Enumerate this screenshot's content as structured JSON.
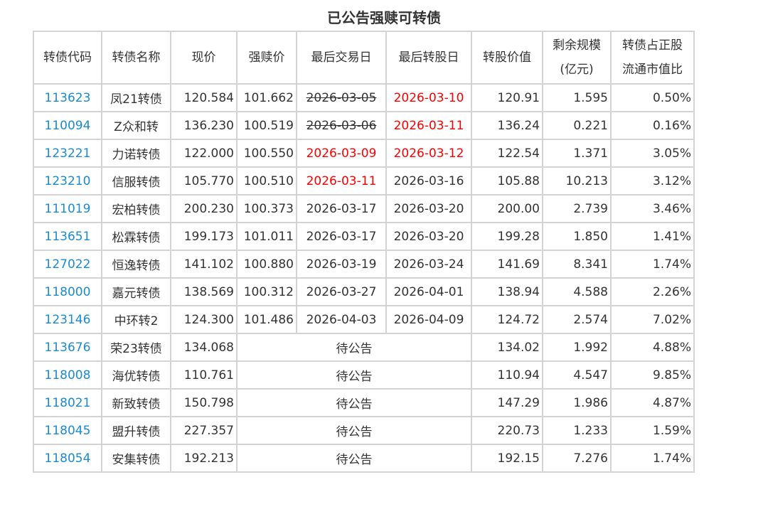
{
  "title": "已公告强赎可转债",
  "headers": [
    "转债代码",
    "转债名称",
    "现价",
    "强赎价",
    "最后交易日",
    "最后转股日",
    "转股价值",
    "剩余规模\n(亿元)",
    "转债占正股\n流通市值比"
  ],
  "colors": {
    "link": "#1a8ad4",
    "alert": "#ff0000",
    "border": "#d4d4d4"
  },
  "rows": [
    {
      "code": "113623",
      "name": "凤21转债",
      "price": "120.584",
      "redeem": "101.662",
      "last_trade": {
        "text": "2026-03-05",
        "style": "strike"
      },
      "last_convert": {
        "text": "2026-03-10",
        "style": "red"
      },
      "conv_value": "120.91",
      "remaining": "1.595",
      "ratio": "0.50%"
    },
    {
      "code": "110094",
      "name": "Z众和转",
      "price": "136.230",
      "redeem": "100.519",
      "last_trade": {
        "text": "2026-03-06",
        "style": "strike"
      },
      "last_convert": {
        "text": "2026-03-11",
        "style": "red"
      },
      "conv_value": "136.24",
      "remaining": "0.221",
      "ratio": "0.16%"
    },
    {
      "code": "123221",
      "name": "力诺转债",
      "price": "122.000",
      "redeem": "100.550",
      "last_trade": {
        "text": "2026-03-09",
        "style": "red"
      },
      "last_convert": {
        "text": "2026-03-12",
        "style": "red"
      },
      "conv_value": "122.54",
      "remaining": "1.371",
      "ratio": "3.05%"
    },
    {
      "code": "123210",
      "name": "信服转债",
      "price": "105.770",
      "redeem": "100.510",
      "last_trade": {
        "text": "2026-03-11",
        "style": "red"
      },
      "last_convert": {
        "text": "2026-03-16",
        "style": ""
      },
      "conv_value": "105.88",
      "remaining": "10.213",
      "ratio": "3.12%"
    },
    {
      "code": "111019",
      "name": "宏柏转债",
      "price": "200.230",
      "redeem": "100.373",
      "last_trade": {
        "text": "2026-03-17",
        "style": ""
      },
      "last_convert": {
        "text": "2026-03-20",
        "style": ""
      },
      "conv_value": "200.00",
      "remaining": "2.739",
      "ratio": "3.46%"
    },
    {
      "code": "113651",
      "name": "松霖转债",
      "price": "199.173",
      "redeem": "101.011",
      "last_trade": {
        "text": "2026-03-17",
        "style": ""
      },
      "last_convert": {
        "text": "2026-03-20",
        "style": ""
      },
      "conv_value": "199.28",
      "remaining": "1.850",
      "ratio": "1.41%"
    },
    {
      "code": "127022",
      "name": "恒逸转债",
      "price": "141.102",
      "redeem": "100.880",
      "last_trade": {
        "text": "2026-03-19",
        "style": ""
      },
      "last_convert": {
        "text": "2026-03-24",
        "style": ""
      },
      "conv_value": "141.69",
      "remaining": "8.341",
      "ratio": "1.74%"
    },
    {
      "code": "118000",
      "name": "嘉元转债",
      "price": "138.569",
      "redeem": "100.312",
      "last_trade": {
        "text": "2026-03-27",
        "style": ""
      },
      "last_convert": {
        "text": "2026-04-01",
        "style": ""
      },
      "conv_value": "138.94",
      "remaining": "4.588",
      "ratio": "2.26%"
    },
    {
      "code": "123146",
      "name": "中环转2",
      "price": "124.300",
      "redeem": "101.486",
      "last_trade": {
        "text": "2026-04-03",
        "style": ""
      },
      "last_convert": {
        "text": "2026-04-09",
        "style": ""
      },
      "conv_value": "124.72",
      "remaining": "2.574",
      "ratio": "7.02%"
    },
    {
      "code": "113676",
      "name": "荣23转债",
      "price": "134.068",
      "pending": "待公告",
      "conv_value": "134.02",
      "remaining": "1.992",
      "ratio": "4.88%"
    },
    {
      "code": "118008",
      "name": "海优转债",
      "price": "110.761",
      "pending": "待公告",
      "conv_value": "110.94",
      "remaining": "4.547",
      "ratio": "9.85%"
    },
    {
      "code": "118021",
      "name": "新致转债",
      "price": "150.798",
      "pending": "待公告",
      "conv_value": "147.29",
      "remaining": "1.986",
      "ratio": "4.87%"
    },
    {
      "code": "118045",
      "name": "盟升转债",
      "price": "227.357",
      "pending": "待公告",
      "conv_value": "220.73",
      "remaining": "1.233",
      "ratio": "1.59%"
    },
    {
      "code": "118054",
      "name": "安集转债",
      "price": "192.213",
      "pending": "待公告",
      "conv_value": "192.15",
      "remaining": "7.276",
      "ratio": "1.74%"
    }
  ]
}
